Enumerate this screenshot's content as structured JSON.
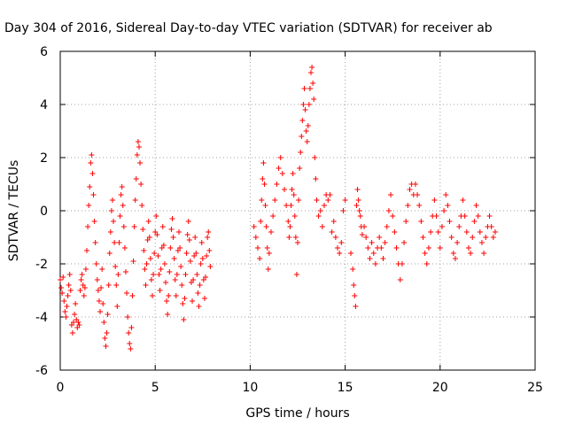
{
  "chart_data": {
    "type": "scatter",
    "title": "Day 304 of 2016, Sidereal Day-to-day VTEC variation (SDTVAR) for receiver ab",
    "xlabel": "GPS time / hours",
    "ylabel": "SDTVAR / TECUs",
    "xlim": [
      0,
      25
    ],
    "ylim": [
      -6,
      6
    ],
    "xticks": [
      0,
      5,
      10,
      15,
      20,
      25
    ],
    "yticks": [
      -6,
      -4,
      -2,
      0,
      2,
      4,
      6
    ],
    "grid": true,
    "marker": "+",
    "colors": {
      "series": "#ff0000",
      "grid": "#a0a0a0",
      "axis": "#000000"
    },
    "series": [
      {
        "name": "SDTVAR",
        "points": [
          [
            0.0,
            -2.6
          ],
          [
            0.05,
            -2.9
          ],
          [
            0.1,
            -3.1
          ],
          [
            0.15,
            -2.5
          ],
          [
            0.2,
            -3.4
          ],
          [
            0.25,
            -3.8
          ],
          [
            0.3,
            -4.0
          ],
          [
            0.35,
            -3.6
          ],
          [
            0.4,
            -3.2
          ],
          [
            0.45,
            -2.8
          ],
          [
            0.5,
            -2.4
          ],
          [
            0.55,
            -3.0
          ],
          [
            0.6,
            -4.3
          ],
          [
            0.65,
            -4.6
          ],
          [
            0.7,
            -4.2
          ],
          [
            0.75,
            -3.9
          ],
          [
            0.8,
            -3.5
          ],
          [
            0.85,
            -4.1
          ],
          [
            0.9,
            -4.4
          ],
          [
            0.95,
            -4.2
          ],
          [
            1.0,
            -4.3
          ],
          [
            1.05,
            -3.0
          ],
          [
            1.1,
            -2.6
          ],
          [
            1.15,
            -2.4
          ],
          [
            1.2,
            -2.8
          ],
          [
            1.25,
            -3.2
          ],
          [
            1.3,
            -2.9
          ],
          [
            1.35,
            -2.2
          ],
          [
            1.4,
            -1.5
          ],
          [
            1.45,
            -0.6
          ],
          [
            1.5,
            0.2
          ],
          [
            1.55,
            0.9
          ],
          [
            1.6,
            1.8
          ],
          [
            1.65,
            2.1
          ],
          [
            1.7,
            1.4
          ],
          [
            1.75,
            0.6
          ],
          [
            1.8,
            -0.4
          ],
          [
            1.85,
            -1.2
          ],
          [
            1.9,
            -2.0
          ],
          [
            1.95,
            -2.6
          ],
          [
            2.0,
            -3.0
          ],
          [
            2.05,
            -3.4
          ],
          [
            2.1,
            -3.8
          ],
          [
            2.15,
            -2.9
          ],
          [
            2.2,
            -2.2
          ],
          [
            2.25,
            -3.5
          ],
          [
            2.3,
            -4.2
          ],
          [
            2.35,
            -4.8
          ],
          [
            2.4,
            -5.1
          ],
          [
            2.45,
            -4.6
          ],
          [
            2.5,
            -3.9
          ],
          [
            2.55,
            -2.8
          ],
          [
            2.6,
            -1.6
          ],
          [
            2.65,
            -0.8
          ],
          [
            2.7,
            0.0
          ],
          [
            2.75,
            0.4
          ],
          [
            2.8,
            -0.4
          ],
          [
            2.85,
            -1.2
          ],
          [
            2.9,
            -2.1
          ],
          [
            2.95,
            -2.8
          ],
          [
            3.0,
            -3.6
          ],
          [
            3.05,
            -2.4
          ],
          [
            3.1,
            -1.2
          ],
          [
            3.15,
            -0.2
          ],
          [
            3.2,
            0.6
          ],
          [
            3.25,
            0.9
          ],
          [
            3.3,
            0.2
          ],
          [
            3.35,
            -0.6
          ],
          [
            3.4,
            -1.4
          ],
          [
            3.45,
            -2.3
          ],
          [
            3.5,
            -3.1
          ],
          [
            3.55,
            -4.0
          ],
          [
            3.6,
            -4.6
          ],
          [
            3.65,
            -5.0
          ],
          [
            3.7,
            -5.2
          ],
          [
            3.75,
            -4.4
          ],
          [
            3.8,
            -3.2
          ],
          [
            3.85,
            -1.9
          ],
          [
            3.9,
            -0.6
          ],
          [
            3.95,
            0.4
          ],
          [
            4.0,
            1.2
          ],
          [
            4.05,
            2.1
          ],
          [
            4.1,
            2.6
          ],
          [
            4.15,
            2.4
          ],
          [
            4.2,
            1.8
          ],
          [
            4.25,
            1.0
          ],
          [
            4.3,
            0.2
          ],
          [
            4.35,
            -0.7
          ],
          [
            4.4,
            -1.5
          ],
          [
            4.45,
            -2.2
          ],
          [
            4.5,
            -2.8
          ],
          [
            4.55,
            -2.0
          ],
          [
            4.6,
            -1.1
          ],
          [
            4.65,
            -0.4
          ],
          [
            4.7,
            -1.0
          ],
          [
            4.75,
            -1.8
          ],
          [
            4.8,
            -2.6
          ],
          [
            4.85,
            -3.2
          ],
          [
            4.9,
            -2.4
          ],
          [
            4.95,
            -1.6
          ],
          [
            5.0,
            -0.8
          ],
          [
            5.05,
            -0.2
          ],
          [
            5.1,
            -0.9
          ],
          [
            5.15,
            -1.7
          ],
          [
            5.2,
            -2.4
          ],
          [
            5.25,
            -3.0
          ],
          [
            5.3,
            -2.2
          ],
          [
            5.35,
            -1.4
          ],
          [
            5.4,
            -0.6
          ],
          [
            5.45,
            -1.3
          ],
          [
            5.5,
            -2.0
          ],
          [
            5.55,
            -2.7
          ],
          [
            5.6,
            -3.4
          ],
          [
            5.65,
            -3.9
          ],
          [
            5.7,
            -3.2
          ],
          [
            5.75,
            -2.3
          ],
          [
            5.8,
            -1.4
          ],
          [
            5.85,
            -0.7
          ],
          [
            5.9,
            -0.3
          ],
          [
            5.95,
            -1.0
          ],
          [
            6.0,
            -1.8
          ],
          [
            6.05,
            -2.6
          ],
          [
            6.1,
            -3.2
          ],
          [
            6.15,
            -2.4
          ],
          [
            6.2,
            -1.5
          ],
          [
            6.25,
            -0.8
          ],
          [
            6.3,
            -1.4
          ],
          [
            6.35,
            -2.1
          ],
          [
            6.4,
            -2.8
          ],
          [
            6.45,
            -3.5
          ],
          [
            6.5,
            -4.1
          ],
          [
            6.55,
            -3.3
          ],
          [
            6.6,
            -2.4
          ],
          [
            6.65,
            -1.6
          ],
          [
            6.7,
            -0.9
          ],
          [
            6.75,
            -0.4
          ],
          [
            6.8,
            -1.1
          ],
          [
            6.85,
            -1.9
          ],
          [
            6.9,
            -2.7
          ],
          [
            6.95,
            -3.4
          ],
          [
            7.0,
            -2.6
          ],
          [
            7.05,
            -1.7
          ],
          [
            7.1,
            -1.0
          ],
          [
            7.15,
            -1.6
          ],
          [
            7.2,
            -2.4
          ],
          [
            7.25,
            -3.1
          ],
          [
            7.3,
            -3.6
          ],
          [
            7.35,
            -2.8
          ],
          [
            7.4,
            -2.0
          ],
          [
            7.45,
            -1.2
          ],
          [
            7.5,
            -1.8
          ],
          [
            7.55,
            -2.6
          ],
          [
            7.6,
            -3.3
          ],
          [
            7.65,
            -2.5
          ],
          [
            7.7,
            -1.7
          ],
          [
            7.75,
            -1.0
          ],
          [
            7.8,
            -0.8
          ],
          [
            7.85,
            -1.5
          ],
          [
            7.9,
            -2.1
          ],
          [
            10.2,
            -0.6
          ],
          [
            10.3,
            -1.0
          ],
          [
            10.4,
            -1.4
          ],
          [
            10.5,
            -1.8
          ],
          [
            10.55,
            -0.4
          ],
          [
            10.6,
            0.4
          ],
          [
            10.65,
            1.2
          ],
          [
            10.7,
            1.8
          ],
          [
            10.75,
            1.0
          ],
          [
            10.8,
            0.2
          ],
          [
            10.85,
            -0.6
          ],
          [
            10.9,
            -1.4
          ],
          [
            10.95,
            -2.2
          ],
          [
            11.0,
            -1.6
          ],
          [
            11.1,
            -0.8
          ],
          [
            11.2,
            -0.2
          ],
          [
            11.3,
            0.4
          ],
          [
            11.4,
            1.0
          ],
          [
            11.5,
            1.6
          ],
          [
            11.6,
            2.0
          ],
          [
            11.7,
            1.4
          ],
          [
            11.8,
            0.8
          ],
          [
            11.9,
            0.2
          ],
          [
            12.0,
            -0.4
          ],
          [
            12.05,
            -1.0
          ],
          [
            12.1,
            -0.6
          ],
          [
            12.15,
            0.2
          ],
          [
            12.2,
            0.8
          ],
          [
            12.25,
            1.4
          ],
          [
            12.3,
            0.6
          ],
          [
            12.35,
            -0.2
          ],
          [
            12.4,
            -1.0
          ],
          [
            12.45,
            -2.4
          ],
          [
            12.5,
            -1.2
          ],
          [
            12.55,
            0.4
          ],
          [
            12.6,
            1.6
          ],
          [
            12.65,
            2.2
          ],
          [
            12.7,
            2.8
          ],
          [
            12.75,
            3.4
          ],
          [
            12.8,
            4.0
          ],
          [
            12.85,
            4.6
          ],
          [
            12.9,
            3.8
          ],
          [
            12.95,
            3.0
          ],
          [
            13.0,
            2.6
          ],
          [
            13.05,
            3.2
          ],
          [
            13.1,
            4.0
          ],
          [
            13.15,
            4.6
          ],
          [
            13.2,
            5.2
          ],
          [
            13.25,
            5.4
          ],
          [
            13.3,
            4.8
          ],
          [
            13.35,
            4.2
          ],
          [
            13.4,
            2.0
          ],
          [
            13.45,
            1.2
          ],
          [
            13.5,
            0.4
          ],
          [
            13.6,
            -0.2
          ],
          [
            13.7,
            0.0
          ],
          [
            13.8,
            -0.6
          ],
          [
            13.9,
            0.2
          ],
          [
            14.0,
            0.6
          ],
          [
            14.1,
            0.4
          ],
          [
            14.2,
            0.6
          ],
          [
            14.3,
            -0.8
          ],
          [
            14.4,
            -0.4
          ],
          [
            14.5,
            -1.0
          ],
          [
            14.6,
            -1.4
          ],
          [
            14.7,
            -1.6
          ],
          [
            14.8,
            -1.2
          ],
          [
            14.9,
            0.0
          ],
          [
            15.0,
            0.4
          ],
          [
            15.3,
            -1.6
          ],
          [
            15.4,
            -2.2
          ],
          [
            15.45,
            -2.8
          ],
          [
            15.5,
            -3.2
          ],
          [
            15.55,
            -3.6
          ],
          [
            15.6,
            0.2
          ],
          [
            15.65,
            0.8
          ],
          [
            15.7,
            0.4
          ],
          [
            15.75,
            0.0
          ],
          [
            15.8,
            -0.2
          ],
          [
            15.85,
            -0.6
          ],
          [
            15.9,
            -0.9
          ],
          [
            16.0,
            -0.6
          ],
          [
            16.1,
            -1.0
          ],
          [
            16.2,
            -1.4
          ],
          [
            16.3,
            -1.8
          ],
          [
            16.4,
            -1.2
          ],
          [
            16.5,
            -1.6
          ],
          [
            16.6,
            -2.0
          ],
          [
            16.7,
            -1.4
          ],
          [
            16.8,
            -1.0
          ],
          [
            16.9,
            -1.4
          ],
          [
            17.0,
            -1.8
          ],
          [
            17.1,
            -1.2
          ],
          [
            17.2,
            -0.6
          ],
          [
            17.3,
            0.0
          ],
          [
            17.4,
            0.6
          ],
          [
            17.5,
            -0.2
          ],
          [
            17.6,
            -0.8
          ],
          [
            17.7,
            -1.4
          ],
          [
            17.8,
            -2.0
          ],
          [
            17.9,
            -2.6
          ],
          [
            18.0,
            -2.0
          ],
          [
            18.1,
            -1.2
          ],
          [
            18.2,
            -0.4
          ],
          [
            18.3,
            0.2
          ],
          [
            18.4,
            0.8
          ],
          [
            18.5,
            1.0
          ],
          [
            18.6,
            0.6
          ],
          [
            18.7,
            1.0
          ],
          [
            18.8,
            0.6
          ],
          [
            18.9,
            0.2
          ],
          [
            19.0,
            -0.4
          ],
          [
            19.1,
            -1.0
          ],
          [
            19.2,
            -1.6
          ],
          [
            19.3,
            -2.0
          ],
          [
            19.4,
            -1.4
          ],
          [
            19.5,
            -0.8
          ],
          [
            19.6,
            -0.2
          ],
          [
            19.7,
            0.4
          ],
          [
            19.8,
            -0.2
          ],
          [
            19.9,
            -0.8
          ],
          [
            20.0,
            -1.4
          ],
          [
            20.1,
            -0.6
          ],
          [
            20.2,
            0.0
          ],
          [
            20.3,
            0.6
          ],
          [
            20.4,
            0.2
          ],
          [
            20.5,
            -0.4
          ],
          [
            20.6,
            -1.0
          ],
          [
            20.7,
            -1.6
          ],
          [
            20.8,
            -1.8
          ],
          [
            20.9,
            -1.2
          ],
          [
            21.0,
            -0.6
          ],
          [
            21.1,
            -0.2
          ],
          [
            21.2,
            0.4
          ],
          [
            21.3,
            -0.2
          ],
          [
            21.4,
            -0.8
          ],
          [
            21.5,
            -1.4
          ],
          [
            21.6,
            -1.6
          ],
          [
            21.7,
            -1.0
          ],
          [
            21.8,
            -0.4
          ],
          [
            21.9,
            0.2
          ],
          [
            22.0,
            -0.2
          ],
          [
            22.1,
            -0.8
          ],
          [
            22.2,
            -1.2
          ],
          [
            22.3,
            -1.6
          ],
          [
            22.4,
            -1.0
          ],
          [
            22.5,
            -0.6
          ],
          [
            22.6,
            -0.2
          ],
          [
            22.7,
            -0.6
          ],
          [
            22.8,
            -1.0
          ],
          [
            22.9,
            -0.8
          ]
        ]
      }
    ]
  }
}
